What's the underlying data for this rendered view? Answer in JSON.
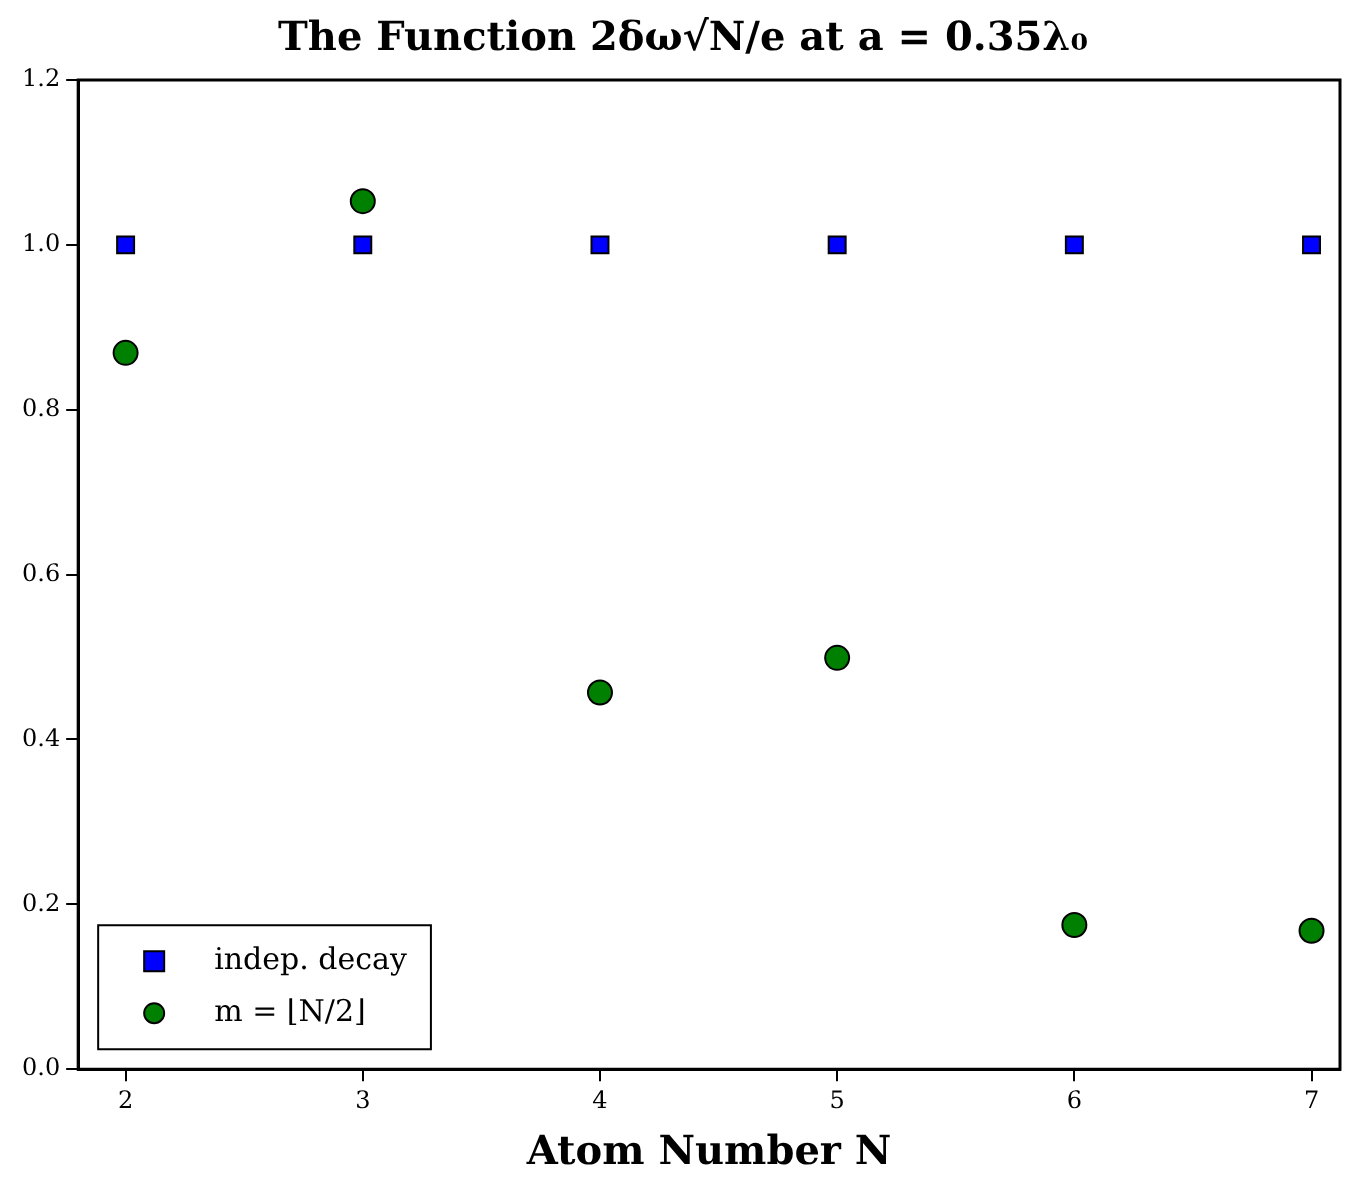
{
  "chart_data": {
    "type": "scatter",
    "title": "The Function 2δω√N/e at a = 0.35λ₀",
    "xlabel": "Atom Number N",
    "x": [
      2,
      3,
      4,
      5,
      6,
      7
    ],
    "series": [
      {
        "name": "indep. decay",
        "color": "#0000ff",
        "marker": "square",
        "values": [
          1.0,
          1.0,
          1.0,
          1.0,
          1.0,
          1.0
        ]
      },
      {
        "name": "m = ⌊N/2⌋",
        "color": "#008000",
        "marker": "circle",
        "values": [
          0.869,
          1.053,
          0.457,
          0.499,
          0.175,
          0.168
        ]
      }
    ],
    "xlim": [
      1.8,
      7.12
    ],
    "xticks": [
      2,
      3,
      4,
      5,
      6,
      7
    ],
    "ylim": [
      0,
      1.2
    ],
    "yticks": [
      {
        "value": 0,
        "label": "0.0"
      },
      {
        "value": 0.2,
        "label": "0.2"
      },
      {
        "value": 0.4,
        "label": "0.4"
      },
      {
        "value": 0.6,
        "label": "0.6"
      },
      {
        "value": 0.8,
        "label": "0.8"
      },
      {
        "value": 1.0,
        "label": "1.0"
      },
      {
        "value": 1.2,
        "label": "1.2"
      }
    ],
    "grid": false,
    "legend": "bottom left"
  }
}
